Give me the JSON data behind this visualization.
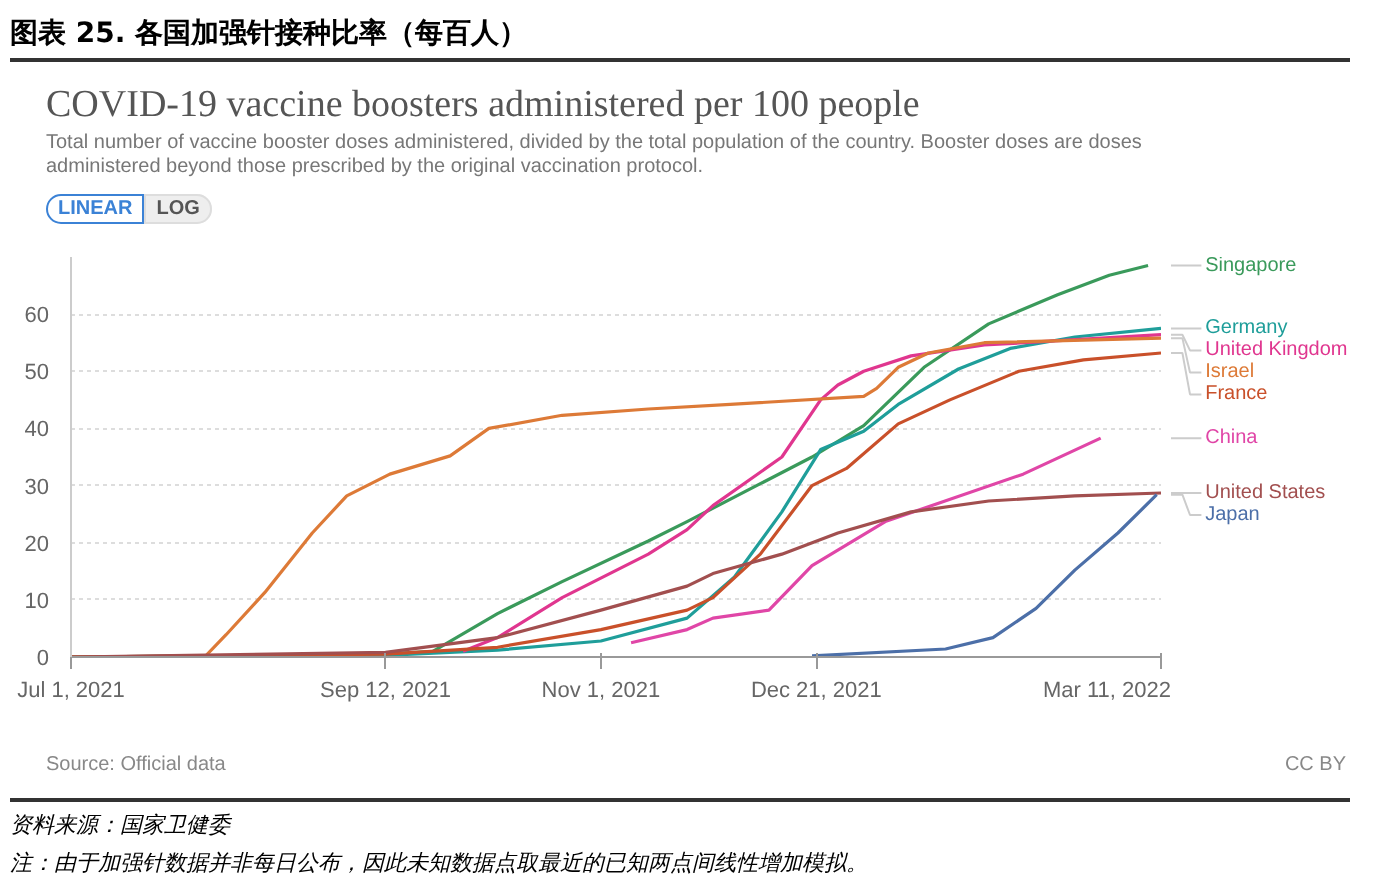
{
  "chart_data": {
    "type": "line",
    "title": "图表 25. 各国加强针接种比率（每百人）",
    "subtitle": "COVID-19 vaccine boosters administered per 100 people",
    "annotations": [
      "Total number of vaccine booster doses administered, divided by the total population of the country. Booster doses are doses administered beyond those prescribed by the original vaccination protocol.",
      "LINEAR",
      "LOG",
      "Source: Official data",
      "CC BY",
      "资料来源：国家卫健委",
      "注：由于加强针数据并非每日公布，因此未知数据点取最近的已知两点间线性增加模拟。"
    ],
    "xlim": [
      "2021-07-01",
      "2022-03-11"
    ],
    "xticks": [
      {
        "value": "2021-07-01",
        "label": "Jul 1, 2021"
      },
      {
        "value": "2021-09-12",
        "label": "Sep 12, 2021"
      },
      {
        "value": "2021-11-01",
        "label": "Nov 1, 2021"
      },
      {
        "value": "2021-12-21",
        "label": "Dec 21, 2021"
      },
      {
        "value": "2022-03-11",
        "label": "Mar 11, 2022"
      }
    ],
    "ylim": [
      0,
      70
    ],
    "yticks": [
      0,
      10,
      20,
      30,
      40,
      50,
      60
    ],
    "grid": "y",
    "legend": "right",
    "marker": "none",
    "line_style": "solid",
    "series": [
      {
        "name": "Singapore",
        "color": "#3a9a5b",
        "x": [
          "2021-07-01",
          "2021-09-12",
          "2021-09-23",
          "2021-10-08",
          "2021-10-23",
          "2021-11-12",
          "2021-11-21",
          "2021-12-20",
          "2022-01-01",
          "2022-01-15",
          "2022-01-30",
          "2022-02-15",
          "2022-02-27",
          "2022-03-08"
        ],
        "values": [
          0,
          0.5,
          1,
          7.6,
          13.2,
          20.3,
          23.7,
          35,
          40.5,
          50.7,
          58.3,
          63.4,
          66.8,
          68.5
        ]
      },
      {
        "name": "Germany",
        "color": "#1f9e9a",
        "x": [
          "2021-07-01",
          "2021-09-12",
          "2021-10-08",
          "2021-11-01",
          "2021-11-21",
          "2021-12-02",
          "2021-12-13",
          "2021-12-22",
          "2022-01-01",
          "2022-01-09",
          "2022-01-23",
          "2022-02-04",
          "2022-02-19",
          "2022-03-11"
        ],
        "values": [
          0,
          0.3,
          1.2,
          2.8,
          6.8,
          14,
          25.4,
          36.3,
          39.5,
          44.2,
          50.4,
          54,
          56,
          57.5
        ]
      },
      {
        "name": "United Kingdom",
        "color": "#e0368f",
        "x": [
          "2021-09-30",
          "2021-10-08",
          "2021-10-23",
          "2021-11-12",
          "2021-11-21",
          "2021-11-27",
          "2021-12-13",
          "2021-12-22",
          "2021-12-26",
          "2022-01-01",
          "2022-01-12",
          "2022-01-29",
          "2022-03-11"
        ],
        "values": [
          1,
          3.4,
          10.4,
          18,
          22.3,
          26.5,
          35,
          45,
          47.6,
          50,
          52.7,
          54.6,
          56.4
        ]
      },
      {
        "name": "Israel",
        "color": "#dd7a37",
        "x": [
          "2021-07-01",
          "2021-08-01",
          "2021-08-06",
          "2021-08-15",
          "2021-08-26",
          "2021-09-03",
          "2021-09-13",
          "2021-09-27",
          "2021-10-06",
          "2021-10-23",
          "2021-11-12",
          "2021-12-01",
          "2022-01-01",
          "2022-01-04",
          "2022-01-09",
          "2022-01-16",
          "2022-01-29",
          "2022-03-11"
        ],
        "values": [
          0,
          0,
          3.9,
          11.3,
          21.7,
          28.2,
          32,
          35.2,
          40,
          42.3,
          43.4,
          44.2,
          45.6,
          47,
          50.7,
          53.2,
          55,
          55.8
        ]
      },
      {
        "name": "France",
        "color": "#c9502a",
        "x": [
          "2021-07-01",
          "2021-09-12",
          "2021-10-08",
          "2021-11-01",
          "2021-11-21",
          "2021-11-27",
          "2021-12-08",
          "2021-12-20",
          "2021-12-28",
          "2022-01-09",
          "2022-01-21",
          "2022-02-06",
          "2022-02-21",
          "2022-03-11"
        ],
        "values": [
          0,
          0.5,
          1.7,
          4.8,
          8.2,
          10.4,
          18,
          30,
          33,
          40.8,
          45,
          50,
          52,
          53.2
        ]
      },
      {
        "name": "China",
        "color": "#e046a7",
        "x": [
          "2021-11-08",
          "2021-11-21",
          "2021-11-27",
          "2021-12-10",
          "2021-12-20",
          "2022-01-06",
          "2022-02-07",
          "2022-02-25"
        ],
        "values": [
          2.5,
          4.8,
          6.8,
          8.2,
          16,
          23.7,
          32,
          38.3
        ]
      },
      {
        "name": "United States",
        "color": "#a24f4f",
        "x": [
          "2021-07-01",
          "2021-09-12",
          "2021-10-08",
          "2021-11-01",
          "2021-11-21",
          "2021-11-27",
          "2021-12-13",
          "2021-12-26",
          "2022-01-12",
          "2022-01-30",
          "2022-02-19",
          "2022-03-11"
        ],
        "values": [
          0,
          0.8,
          3.4,
          8.2,
          12.4,
          14.6,
          18,
          21.7,
          25.4,
          27.3,
          28.2,
          28.7
        ]
      },
      {
        "name": "Japan",
        "color": "#4c6fa8",
        "x": [
          "2021-12-20",
          "2022-01-20",
          "2022-01-31",
          "2022-02-10",
          "2022-02-19",
          "2022-03-01",
          "2022-03-10"
        ],
        "values": [
          0.2,
          1.4,
          3.4,
          8.5,
          15.2,
          21.7,
          28.4
        ]
      }
    ]
  }
}
